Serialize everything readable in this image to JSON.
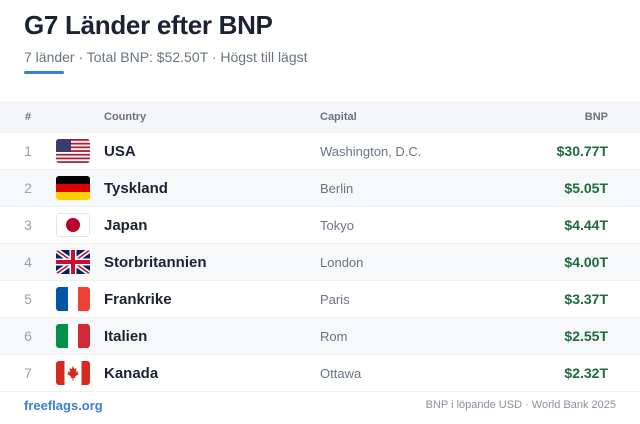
{
  "header": {
    "title": "G7 Länder efter BNP",
    "subtitle": "7 länder · Total BNP: $52.50T · Högst till lägst"
  },
  "table": {
    "columns": [
      "#",
      "Country",
      "Capital",
      "BNP"
    ],
    "rows": [
      {
        "rank": 1,
        "country": "USA",
        "capital": "Washington, D.C.",
        "bnp": "$30.77T"
      },
      {
        "rank": 2,
        "country": "Tyskland",
        "capital": "Berlin",
        "bnp": "$5.05T"
      },
      {
        "rank": 3,
        "country": "Japan",
        "capital": "Tokyo",
        "bnp": "$4.44T"
      },
      {
        "rank": 4,
        "country": "Storbritannien",
        "capital": "London",
        "bnp": "$4.00T"
      },
      {
        "rank": 5,
        "country": "Frankrike",
        "capital": "Paris",
        "bnp": "$3.37T"
      },
      {
        "rank": 6,
        "country": "Italien",
        "capital": "Rom",
        "bnp": "$2.55T"
      },
      {
        "rank": 7,
        "country": "Kanada",
        "capital": "Ottawa",
        "bnp": "$2.32T"
      }
    ]
  },
  "footer": {
    "source": "freeflags.org",
    "note": "BNP i löpande USD · World Bank 2025"
  }
}
